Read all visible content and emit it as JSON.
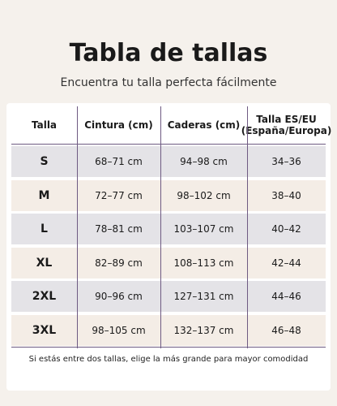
{
  "header": {
    "title": "Tabla de tallas",
    "subtitle": "Encuentra tu talla perfecta fácilmente"
  },
  "table": {
    "columns": [
      "Talla",
      "Cintura (cm)",
      "Caderas (cm)",
      "Talla ES/EU (España/Europa)"
    ],
    "rows": [
      [
        "S",
        "68–71 cm",
        "94–98 cm",
        "34–36"
      ],
      [
        "M",
        "72–77 cm",
        "98–102 cm",
        "38–40"
      ],
      [
        "L",
        "78–81 cm",
        "103–107 cm",
        "40–42"
      ],
      [
        "XL",
        "82–89 cm",
        "108–113 cm",
        "42–44"
      ],
      [
        "2XL",
        "90–96 cm",
        "127–131 cm",
        "44–46"
      ],
      [
        "3XL",
        "98–105 cm",
        "132–137 cm",
        "46–48"
      ]
    ]
  },
  "footnote": "Si estás entre dos tallas, elige la más grande para mayor comodidad"
}
